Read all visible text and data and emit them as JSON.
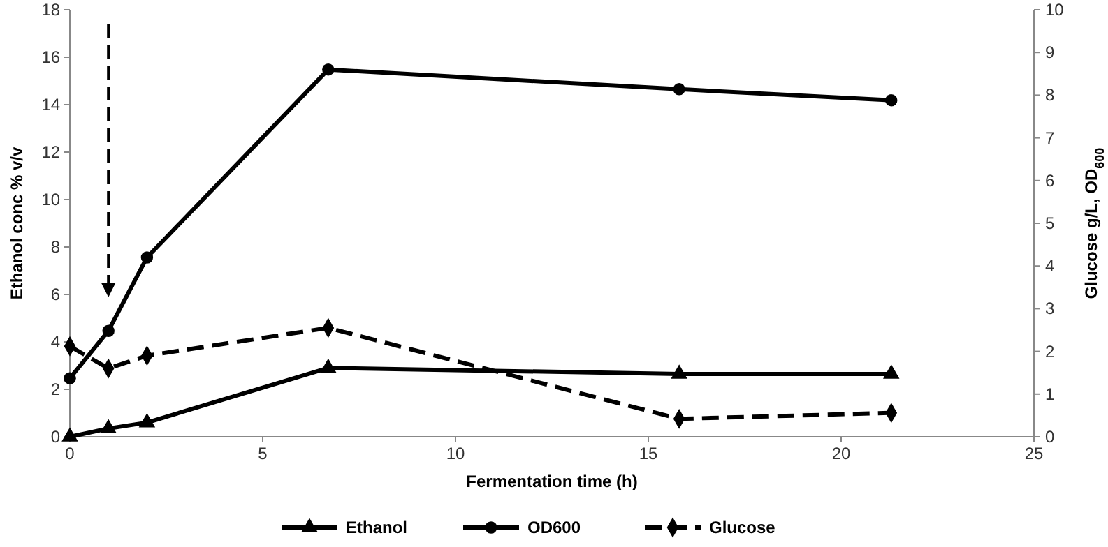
{
  "chart_data": {
    "type": "line",
    "xlabel": "Fermentation time (h)",
    "ylabel": "Ethanol conc % v/v",
    "y2label": "Glucose g/L, OD$_{600}$",
    "x": [
      0,
      1,
      2,
      6.7,
      15.8,
      21.3
    ],
    "xlim": [
      0,
      25
    ],
    "xticks": [
      0,
      5,
      10,
      15,
      20,
      25
    ],
    "ylim": [
      0,
      18
    ],
    "yticks": [
      0,
      2,
      4,
      6,
      8,
      10,
      12,
      14,
      16,
      18
    ],
    "y2lim": [
      0,
      10
    ],
    "y2ticks": [
      0,
      1,
      2,
      3,
      4,
      5,
      6,
      7,
      8,
      9,
      10
    ],
    "grid": false,
    "legend": "bottom",
    "series": [
      {
        "name": "Ethanol",
        "color": "#000000",
        "marker": "triangle",
        "line_style": "solid",
        "values": [
          0,
          0.35,
          0.6,
          2.9,
          2.65,
          2.65
        ]
      },
      {
        "name": "OD600",
        "color": "#000000",
        "marker": "circle",
        "line_style": "solid",
        "axis": "y2",
        "values": [
          1.37,
          2.48,
          4.2,
          8.6,
          8.14,
          7.88
        ]
      },
      {
        "name": "Glucose",
        "color": "#000000",
        "marker": "diamond",
        "line_style": "dashed",
        "axis": "y2",
        "values": [
          2.12,
          1.6,
          1.9,
          2.55,
          0.42,
          0.56
        ]
      }
    ]
  }
}
